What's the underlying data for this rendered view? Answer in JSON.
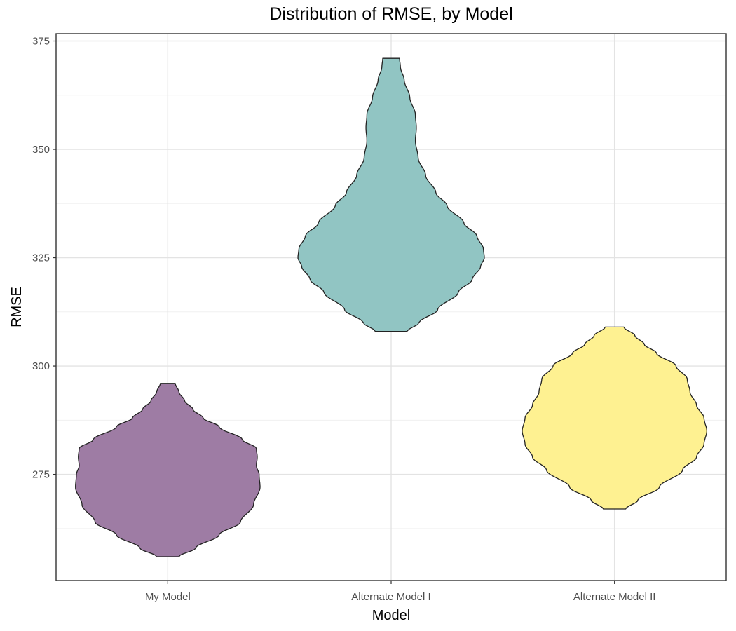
{
  "chart_data": {
    "type": "violin",
    "title": "Distribution of RMSE, by Model",
    "xlabel": "Model",
    "ylabel": "RMSE",
    "ylim": [
      250.5,
      376.7
    ],
    "y_ticks": [
      275,
      300,
      325,
      350,
      375
    ],
    "y_minor_ticks": [
      262.5,
      287.5,
      312.5,
      337.5,
      362.5
    ],
    "grid": true,
    "legend": "none",
    "categories": [
      "My Model",
      "Alternate Model I",
      "Alternate Model II"
    ],
    "series": [
      {
        "category": "My Model",
        "color": "#9e7ca4",
        "min": 256,
        "max": 296,
        "profile": [
          [
            256,
            0.12
          ],
          [
            258,
            0.3
          ],
          [
            261,
            0.55
          ],
          [
            264,
            0.78
          ],
          [
            268,
            0.92
          ],
          [
            272,
            0.99
          ],
          [
            275,
            0.98
          ],
          [
            277,
            0.95
          ],
          [
            279,
            0.96
          ],
          [
            281,
            0.95
          ],
          [
            283,
            0.8
          ],
          [
            286,
            0.55
          ],
          [
            288,
            0.38
          ],
          [
            290,
            0.27
          ],
          [
            292,
            0.18
          ],
          [
            294,
            0.12
          ],
          [
            296,
            0.08
          ]
        ]
      },
      {
        "category": "Alternate Model I",
        "color": "#91c5c3",
        "min": 308,
        "max": 371,
        "profile": [
          [
            308,
            0.17
          ],
          [
            310,
            0.3
          ],
          [
            313,
            0.5
          ],
          [
            317,
            0.72
          ],
          [
            320,
            0.87
          ],
          [
            323,
            0.96
          ],
          [
            325,
            1.0
          ],
          [
            327,
            0.99
          ],
          [
            330,
            0.92
          ],
          [
            333,
            0.78
          ],
          [
            337,
            0.6
          ],
          [
            340,
            0.48
          ],
          [
            344,
            0.37
          ],
          [
            348,
            0.29
          ],
          [
            352,
            0.26
          ],
          [
            355,
            0.27
          ],
          [
            358,
            0.26
          ],
          [
            362,
            0.2
          ],
          [
            366,
            0.14
          ],
          [
            369,
            0.1
          ],
          [
            371,
            0.09
          ]
        ]
      },
      {
        "category": "Alternate Model II",
        "color": "#fef191",
        "min": 267,
        "max": 309,
        "profile": [
          [
            267,
            0.12
          ],
          [
            269,
            0.25
          ],
          [
            272,
            0.48
          ],
          [
            276,
            0.73
          ],
          [
            279,
            0.88
          ],
          [
            282,
            0.96
          ],
          [
            285,
            0.99
          ],
          [
            288,
            0.96
          ],
          [
            291,
            0.88
          ],
          [
            294,
            0.81
          ],
          [
            297,
            0.78
          ],
          [
            300,
            0.66
          ],
          [
            303,
            0.45
          ],
          [
            305,
            0.32
          ],
          [
            307,
            0.22
          ],
          [
            309,
            0.1
          ]
        ]
      }
    ]
  }
}
